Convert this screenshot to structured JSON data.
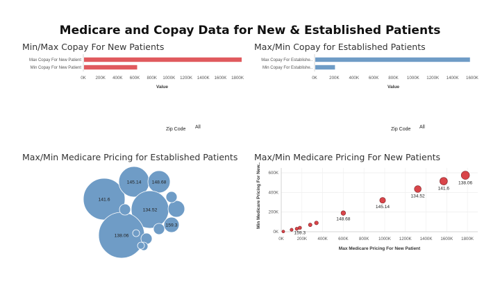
{
  "title": "Medicare and Copay Data for New & Established Patients",
  "filters": {
    "zip_label": "Zip Code",
    "zip_value": "All"
  },
  "colors": {
    "red": "#e05a5e",
    "blue": "#6f9cc6",
    "scatter_red": "#d9454a"
  },
  "chart_data": [
    {
      "type": "bar",
      "title": "Min/Max Copay For New Patients",
      "orientation": "horizontal",
      "categories": [
        "Max Copay For New Patient",
        "Min Copay For New Patient"
      ],
      "values": [
        1840000,
        620000
      ],
      "xlabel": "Value",
      "xlim": [
        0,
        1840000
      ],
      "ticks": [
        "0K",
        "200K",
        "400K",
        "600K",
        "800K",
        "1000K",
        "1200K",
        "1400K",
        "1600K",
        "1800K"
      ],
      "tick_values": [
        0,
        200000,
        400000,
        600000,
        800000,
        1000000,
        1200000,
        1400000,
        1600000,
        1800000
      ],
      "color": "#e05a5e"
    },
    {
      "type": "bar",
      "title": "Max/Min Copay for Established Patients",
      "orientation": "horizontal",
      "categories": [
        "Max Copay For Establishe..",
        "Min Copay For Establishe.."
      ],
      "values": [
        1570000,
        200000
      ],
      "xlabel": "Value",
      "xlim": [
        0,
        1600000
      ],
      "ticks": [
        "0K",
        "200K",
        "400K",
        "600K",
        "800K",
        "1000K",
        "1200K",
        "1400K",
        "1600K"
      ],
      "tick_values": [
        0,
        200000,
        400000,
        600000,
        800000,
        1000000,
        1200000,
        1400000,
        1600000
      ],
      "color": "#6f9cc6"
    },
    {
      "type": "bubble",
      "title": "Max/Min Medicare Pricing for Established Patients",
      "labels": [
        "141.6",
        "145.14",
        "148.68",
        "134.52",
        "138.06",
        "159.3",
        "",
        "",
        "",
        "",
        "",
        "",
        "",
        ""
      ],
      "color": "#6f9cc6"
    },
    {
      "type": "scatter",
      "title": "Max/Min Medicare Pricing For New Patients",
      "xlabel": "Max Medicare Pricing For New Patient",
      "ylabel": "Min Medicare Pricing For New..",
      "xlim": [
        0,
        1900000
      ],
      "ylim": [
        0,
        650000
      ],
      "xticks": [
        "0K",
        "200K",
        "400K",
        "600K",
        "800K",
        "1000K",
        "1200K",
        "1400K",
        "1600K",
        "1800K"
      ],
      "xtick_values": [
        0,
        200000,
        400000,
        600000,
        800000,
        1000000,
        1200000,
        1400000,
        1600000,
        1800000
      ],
      "yticks": [
        "0K",
        "200K",
        "400K",
        "600K"
      ],
      "ytick_values": [
        0,
        200000,
        400000,
        600000
      ],
      "points": [
        {
          "x": 20000,
          "y": 2000,
          "label": ""
        },
        {
          "x": 100000,
          "y": 20000,
          "label": ""
        },
        {
          "x": 150000,
          "y": 30000,
          "label": ""
        },
        {
          "x": 180000,
          "y": 40000,
          "label": "159.3"
        },
        {
          "x": 280000,
          "y": 70000,
          "label": ""
        },
        {
          "x": 340000,
          "y": 90000,
          "label": ""
        },
        {
          "x": 600000,
          "y": 190000,
          "label": "148.68"
        },
        {
          "x": 980000,
          "y": 320000,
          "label": "145.14"
        },
        {
          "x": 1320000,
          "y": 435000,
          "label": "134.52"
        },
        {
          "x": 1570000,
          "y": 515000,
          "label": "141.6"
        },
        {
          "x": 1780000,
          "y": 575000,
          "label": "138.06"
        }
      ],
      "color": "#d9454a"
    }
  ]
}
